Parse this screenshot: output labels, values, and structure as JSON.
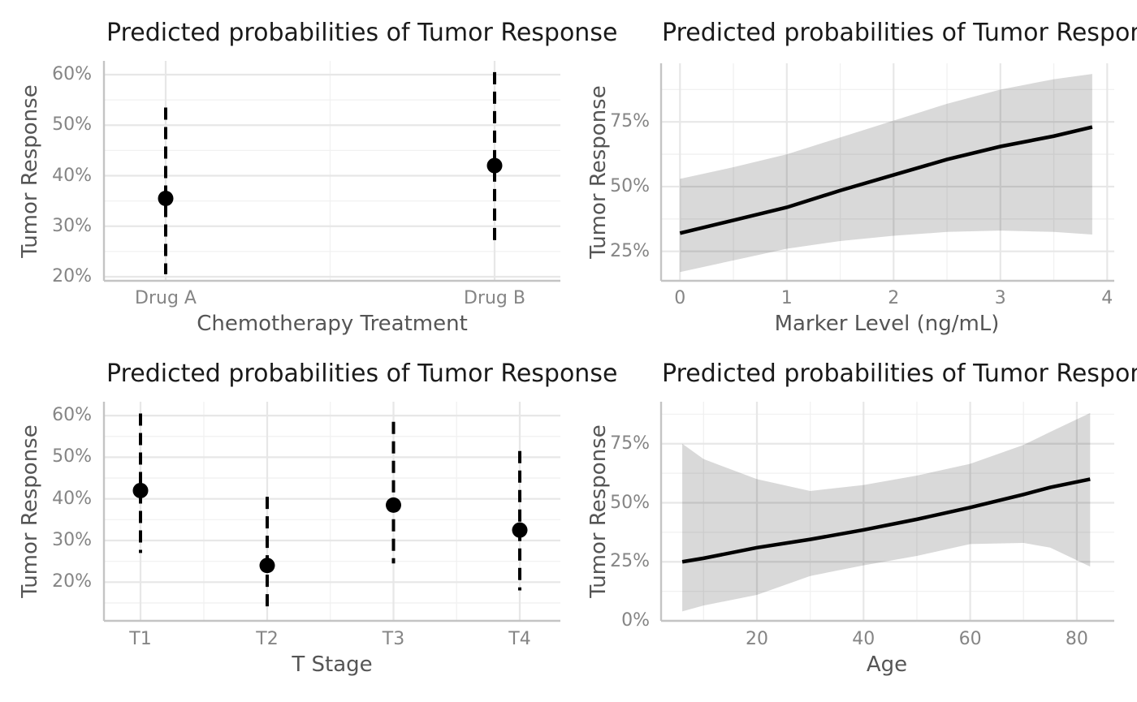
{
  "colors": {
    "background": "#ffffff",
    "grid_major": "#e7e7e7",
    "grid_minor": "#f1f1f1",
    "axis_line": "#c4c4c4",
    "ribbon": "rgba(0,0,0,0.15)",
    "line": "#000000",
    "point": "#000000",
    "title": "#1a1a1a",
    "axis_title": "#555555",
    "tick": "#858585"
  },
  "chart_data": [
    {
      "id": "treatment",
      "type": "pointrange",
      "title": "Predicted probabilities of Tumor Response",
      "xlabel": "Chemotherapy Treatment",
      "ylabel": "Tumor Response",
      "categories": [
        "Drug A",
        "Drug B"
      ],
      "points": [
        {
          "category": "Drug A",
          "estimate": 35.5,
          "ci_low": 20.5,
          "ci_high": 53.5
        },
        {
          "category": "Drug B",
          "estimate": 42.0,
          "ci_low": 27.0,
          "ci_high": 60.5
        }
      ],
      "y_ticks": [
        {
          "value": 20,
          "label": "20%"
        },
        {
          "value": 30,
          "label": "30%"
        },
        {
          "value": 40,
          "label": "40%"
        },
        {
          "value": 50,
          "label": "50%"
        },
        {
          "value": 60,
          "label": "60%"
        }
      ],
      "ylim": [
        19,
        63
      ],
      "grid": true,
      "legend": "none"
    },
    {
      "id": "marker",
      "type": "line-ribbon",
      "title": "Predicted probabilities of Tumor Response",
      "xlabel": "Marker Level (ng/mL)",
      "ylabel": "Tumor Response",
      "x_ticks": [
        {
          "value": 0,
          "label": "0"
        },
        {
          "value": 1,
          "label": "1"
        },
        {
          "value": 2,
          "label": "2"
        },
        {
          "value": 3,
          "label": "3"
        },
        {
          "value": 4,
          "label": "4"
        }
      ],
      "y_ticks": [
        {
          "value": 25,
          "label": "25%"
        },
        {
          "value": 50,
          "label": "50%"
        },
        {
          "value": 75,
          "label": "75%"
        }
      ],
      "xlim": [
        -0.2,
        4.05
      ],
      "ylim": [
        13.5,
        97.5
      ],
      "curve": {
        "x": [
          0,
          0.5,
          1,
          1.5,
          2,
          2.5,
          3,
          3.5,
          3.86
        ],
        "y": [
          32,
          37,
          42,
          48.5,
          54.5,
          60.5,
          65.5,
          69.5,
          73
        ],
        "upper": [
          53,
          57.5,
          62.5,
          69,
          75.5,
          82,
          87.5,
          91.5,
          93.5
        ],
        "lower": [
          17,
          21.5,
          26,
          29,
          31,
          32.5,
          33,
          32.5,
          31.5
        ]
      },
      "grid": true,
      "legend": "none"
    },
    {
      "id": "tstage",
      "type": "pointrange",
      "title": "Predicted probabilities of Tumor Response",
      "xlabel": "T Stage",
      "ylabel": "Tumor Response",
      "categories": [
        "T1",
        "T2",
        "T3",
        "T4"
      ],
      "points": [
        {
          "category": "T1",
          "estimate": 42.0,
          "ci_low": 27.0,
          "ci_high": 60.5
        },
        {
          "category": "T2",
          "estimate": 24.0,
          "ci_low": 13.0,
          "ci_high": 40.5
        },
        {
          "category": "T3",
          "estimate": 38.5,
          "ci_low": 24.5,
          "ci_high": 58.5
        },
        {
          "category": "T4",
          "estimate": 32.5,
          "ci_low": 18.0,
          "ci_high": 51.5
        }
      ],
      "y_ticks": [
        {
          "value": 20,
          "label": "20%"
        },
        {
          "value": 30,
          "label": "30%"
        },
        {
          "value": 40,
          "label": "40%"
        },
        {
          "value": 50,
          "label": "50%"
        },
        {
          "value": 60,
          "label": "60%"
        }
      ],
      "ylim": [
        10.5,
        63.5
      ],
      "grid": true,
      "legend": "none"
    },
    {
      "id": "age",
      "type": "line-ribbon",
      "title": "Predicted probabilities of Tumor Response",
      "xlabel": "Age",
      "ylabel": "Tumor Response",
      "x_ticks": [
        {
          "value": 20,
          "label": "20"
        },
        {
          "value": 40,
          "label": "40"
        },
        {
          "value": 60,
          "label": "60"
        },
        {
          "value": 80,
          "label": "80"
        }
      ],
      "y_ticks": [
        {
          "value": 0,
          "label": "0%"
        },
        {
          "value": 25,
          "label": "25%"
        },
        {
          "value": 50,
          "label": "50%"
        },
        {
          "value": 75,
          "label": "75%"
        }
      ],
      "xlim": [
        2,
        86.5
      ],
      "ylim": [
        0,
        93
      ],
      "curve": {
        "x": [
          6,
          10,
          20,
          30,
          40,
          50,
          60,
          70,
          75,
          82.5
        ],
        "y": [
          25,
          26.5,
          31,
          34.5,
          38.5,
          43,
          48,
          53.5,
          56.5,
          60
        ],
        "upper": [
          75,
          68.5,
          60,
          55,
          57.5,
          61.5,
          66.5,
          74.5,
          80,
          88
        ],
        "lower": [
          4,
          6.5,
          11,
          19,
          23.5,
          27.5,
          32.5,
          33,
          31,
          23
        ]
      },
      "grid": true,
      "legend": "none"
    }
  ]
}
